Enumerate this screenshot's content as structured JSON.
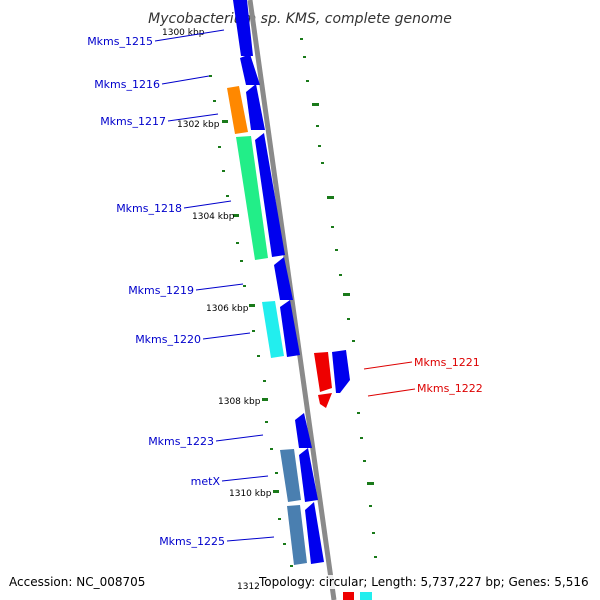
{
  "title": "Mycobacterium sp. KMS, complete genome",
  "footer": {
    "accession": "Accession: NC_008705",
    "topology": "Topology: circular; Length: 5,737,227 bp; Genes: 5,516"
  },
  "colors": {
    "backbone": "#8a8a8a",
    "cds_blue": "#0000ee",
    "label_blue": "#0000cc",
    "label_red": "#dd0000",
    "tick_green": "#1a7a1a",
    "orange": "#ff8800",
    "green": "#22ee88",
    "cyan": "#22eeee",
    "red": "#ee0000",
    "steel": "#4a7fb0"
  },
  "ticks": [
    {
      "label": "1300 kbp"
    },
    {
      "label": "1302 kbp"
    },
    {
      "label": "1304 kbp"
    },
    {
      "label": "1306 kbp"
    },
    {
      "label": "1308 kbp"
    },
    {
      "label": "1310 kbp"
    },
    {
      "label": "1312"
    }
  ],
  "genes": [
    {
      "name": "Mkms_1215",
      "strand": "left"
    },
    {
      "name": "Mkms_1216",
      "strand": "left"
    },
    {
      "name": "Mkms_1217",
      "strand": "left"
    },
    {
      "name": "Mkms_1218",
      "strand": "left"
    },
    {
      "name": "Mkms_1219",
      "strand": "left"
    },
    {
      "name": "Mkms_1220",
      "strand": "left"
    },
    {
      "name": "Mkms_1221",
      "strand": "right"
    },
    {
      "name": "Mkms_1222",
      "strand": "right"
    },
    {
      "name": "Mkms_1223",
      "strand": "left"
    },
    {
      "name": "metX",
      "strand": "left"
    },
    {
      "name": "Mkms_1225",
      "strand": "left"
    }
  ]
}
